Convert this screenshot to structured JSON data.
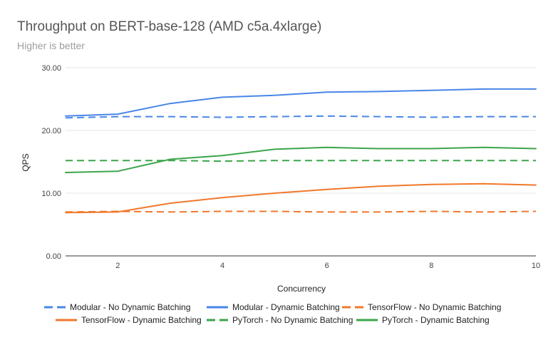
{
  "chart_data": {
    "type": "line",
    "title": "Throughput on BERT-base-128 (AMD c5a.4xlarge)",
    "subtitle": "Higher is better",
    "xlabel": "Concurrency",
    "ylabel": "QPS",
    "xlim": [
      1,
      10
    ],
    "ylim": [
      0,
      30
    ],
    "x_ticks": [
      2,
      4,
      6,
      8,
      10
    ],
    "y_ticks": [
      "0.00",
      "10.00",
      "20.00",
      "30.00"
    ],
    "grid": "horizontal",
    "legend_position": "bottom",
    "x": [
      1,
      2,
      3,
      4,
      5,
      6,
      7,
      8,
      9,
      10
    ],
    "series": [
      {
        "name": "Modular - No Dynamic Batching",
        "color": "#4a86e8",
        "dash": true,
        "values": [
          22.0,
          22.2,
          22.2,
          22.1,
          22.2,
          22.3,
          22.2,
          22.1,
          22.2,
          22.2
        ]
      },
      {
        "name": "Modular - Dynamic Batching",
        "color": "#4a86e8",
        "dash": false,
        "values": [
          22.3,
          22.6,
          24.3,
          25.3,
          25.6,
          26.1,
          26.2,
          26.4,
          26.6,
          26.6
        ]
      },
      {
        "name": "TensorFlow - No Dynamic Batching",
        "color": "#f1782b",
        "dash": true,
        "values": [
          7.0,
          7.1,
          7.0,
          7.1,
          7.1,
          7.0,
          7.0,
          7.1,
          7.0,
          7.1
        ]
      },
      {
        "name": "TensorFlow - Dynamic Batching",
        "color": "#f1782b",
        "dash": false,
        "values": [
          6.9,
          7.0,
          8.4,
          9.3,
          10.0,
          10.6,
          11.1,
          11.4,
          11.5,
          11.3
        ]
      },
      {
        "name": "PyTorch - No Dynamic Batching",
        "color": "#3ba54a",
        "dash": true,
        "values": [
          15.2,
          15.2,
          15.2,
          15.1,
          15.2,
          15.2,
          15.2,
          15.2,
          15.2,
          15.2
        ]
      },
      {
        "name": "PyTorch - Dynamic Batching",
        "color": "#3ba54a",
        "dash": false,
        "values": [
          13.3,
          13.5,
          15.4,
          16.0,
          17.0,
          17.3,
          17.1,
          17.1,
          17.3,
          17.1
        ]
      }
    ]
  }
}
